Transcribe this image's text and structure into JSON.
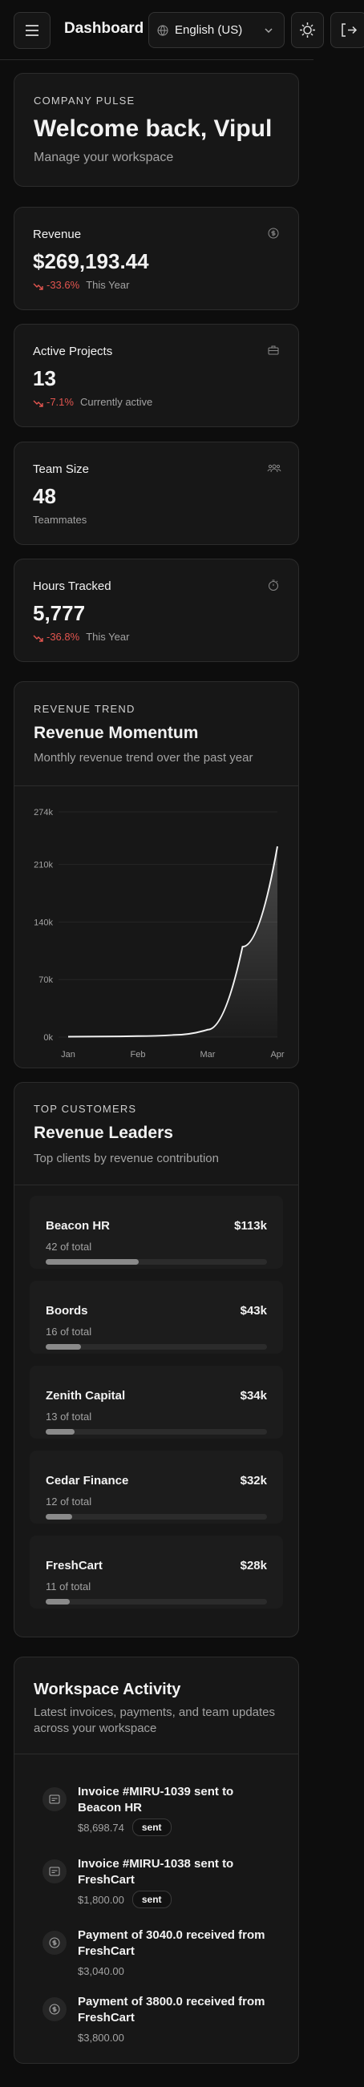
{
  "header": {
    "title": "Dashboard",
    "language": "English (US)"
  },
  "welcome": {
    "eyebrow": "COMPANY PULSE",
    "title": "Welcome back, Vipul",
    "subtitle": "Manage your workspace"
  },
  "stats": [
    {
      "label": "Revenue",
      "value": "$269,193.44",
      "delta": "-33.6%",
      "note": "This Year"
    },
    {
      "label": "Active Projects",
      "value": "13",
      "delta": "-7.1%",
      "note": "Currently active"
    },
    {
      "label": "Team Size",
      "value": "48",
      "note": "Teammates"
    },
    {
      "label": "Hours Tracked",
      "value": "5,777",
      "delta": "-36.8%",
      "note": "This Year"
    }
  ],
  "chart_data": {
    "type": "line",
    "eyebrow": "REVENUE TREND",
    "title": "Revenue Momentum",
    "subtitle": "Monthly revenue trend over the past year",
    "categories": [
      "Jan",
      null,
      "Feb",
      null,
      "Mar",
      null,
      "Apr"
    ],
    "series": [
      {
        "name": "Revenue",
        "color": "#f2f2f2",
        "values": [
          500,
          700,
          1200,
          2500,
          9000,
          110000,
          232000
        ]
      }
    ],
    "ylim": [
      0,
      274000
    ],
    "yticks": [
      {
        "value": 0,
        "label": "0k"
      },
      {
        "value": 70000,
        "label": "70k"
      },
      {
        "value": 140000,
        "label": "140k"
      },
      {
        "value": 210000,
        "label": "210k"
      },
      {
        "value": 274000,
        "label": "274k"
      }
    ],
    "grid": true
  },
  "customers": {
    "eyebrow": "TOP CUSTOMERS",
    "title": "Revenue Leaders",
    "subtitle": "Top clients by revenue contribution",
    "items": [
      {
        "name": "Beacon HR",
        "amount": "$113k",
        "share": 42,
        "share_label": "42 of total"
      },
      {
        "name": "Boords",
        "amount": "$43k",
        "share": 16,
        "share_label": "16 of total"
      },
      {
        "name": "Zenith Capital",
        "amount": "$34k",
        "share": 13,
        "share_label": "13 of total"
      },
      {
        "name": "Cedar Finance",
        "amount": "$32k",
        "share": 12,
        "share_label": "12 of total"
      },
      {
        "name": "FreshCart",
        "amount": "$28k",
        "share": 11,
        "share_label": "11 of total"
      }
    ]
  },
  "activity": {
    "title": "Workspace Activity",
    "subtitle": [
      "Latest invoices, payments, and team updates",
      "across your workspace"
    ],
    "items": [
      {
        "kind": "invoice",
        "title": [
          "Invoice #MIRU-1039 sent to",
          "Beacon HR"
        ],
        "amount": "$8,698.74",
        "status": "sent"
      },
      {
        "kind": "invoice",
        "title": [
          "Invoice #MIRU-1038 sent to",
          "FreshCart"
        ],
        "amount": "$1,800.00",
        "status": "sent"
      },
      {
        "kind": "payment",
        "title": [
          "Payment of 3040.0 received from",
          "FreshCart"
        ],
        "amount": "$3,040.00"
      },
      {
        "kind": "payment",
        "title": [
          "Payment of 3800.0 received from",
          "FreshCart"
        ],
        "amount": "$3,800.00"
      }
    ]
  }
}
